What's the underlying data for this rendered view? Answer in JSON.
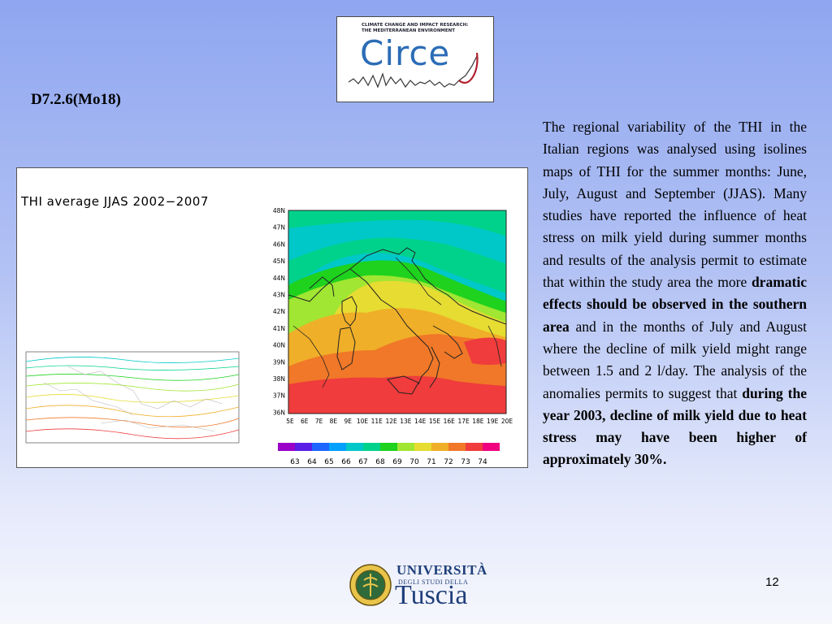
{
  "logo": {
    "line1": "CLIMATE CHANGE AND IMPACT RESEARCH:",
    "line2": "THE MEDITERRANEAN ENVIRONMENT",
    "name": "Circe"
  },
  "slide_id": "D7.2.6(Mo18)",
  "figure": {
    "title": "THI average JJAS 2002−2007",
    "lat_labels": [
      "48N",
      "47N",
      "46N",
      "45N",
      "44N",
      "43N",
      "42N",
      "41N",
      "40N",
      "39N",
      "38N",
      "37N",
      "36N"
    ],
    "lon_labels": [
      "5E",
      "6E",
      "7E",
      "8E",
      "9E",
      "10E",
      "11E",
      "12E",
      "13E",
      "14E",
      "15E",
      "16E",
      "17E",
      "18E",
      "19E",
      "20E"
    ],
    "legend_values": [
      "63",
      "64",
      "65",
      "66",
      "67",
      "68",
      "69",
      "70",
      "71",
      "72",
      "73",
      "74"
    ],
    "legend_colors": [
      "#9a00c8",
      "#5a1ee6",
      "#1e64ff",
      "#00a0ff",
      "#00c8c8",
      "#00d28c",
      "#1ed21e",
      "#a0e632",
      "#e6dc32",
      "#f0af28",
      "#f07828",
      "#f03c3c",
      "#f0007f"
    ]
  },
  "text": {
    "p1": "The regional variability of the THI in the Italian regions was analysed using isolines maps of THI for the summer months: June, July, August and September (JJAS). Many studies have reported the influence of heat stress on milk yield during summer months and results of the analysis permit to estimate that within the study area the more ",
    "b1": "dramatic effects should be observed in the southern area",
    "p2": " and in the months of July and August where the decline of milk yield might range between 1.5 and 2 l/day. The analysis of the anomalies permits to suggest that ",
    "b2": "during the year 2003, decline of milk yield due to heat stress may have been higher of approximately 30%."
  },
  "university": {
    "line1": "UNIVERSITÀ",
    "line2": "DEGLI STUDI DELLA",
    "line3": "Tuscia"
  },
  "page_number": "12"
}
